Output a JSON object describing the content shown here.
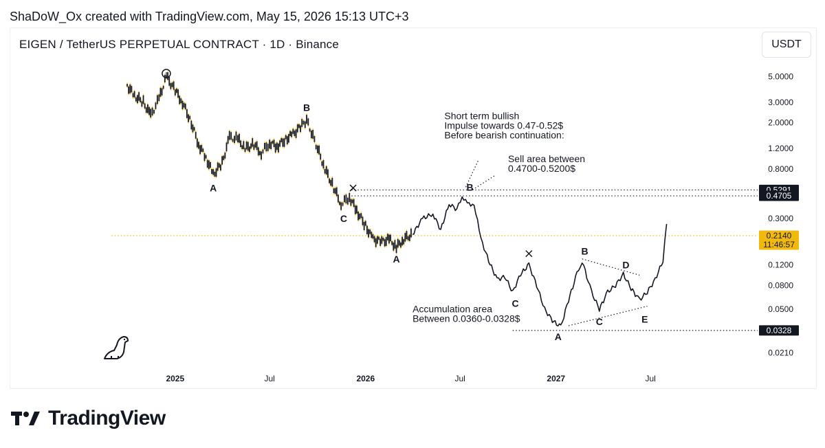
{
  "header": {
    "attribution": "ShaDoW_Ox created with TradingView.com, May 15, 2026 15:13 UTC+3",
    "symbol": "EIGEN / TetherUS PERPETUAL CONTRACT · 1D · Binance",
    "currency_button": "USDT"
  },
  "brand": {
    "name": "TradingView",
    "accent": "#131722"
  },
  "chart_data": {
    "type": "line",
    "scale": "log",
    "ylim": [
      0.018,
      6.5
    ],
    "xlim": [
      "2024-10-01",
      "2027-09-10"
    ],
    "y_ticks": [
      "5.0000",
      "3.0000",
      "2.0000",
      "1.2000",
      "0.8000",
      "0.3000",
      "0.1200",
      "0.0800",
      "0.0500",
      "0.0210"
    ],
    "y_tick_values": [
      5.0,
      3.0,
      2.0,
      1.2,
      0.8,
      0.3,
      0.12,
      0.08,
      0.05,
      0.021
    ],
    "x_ticks": [
      "2025",
      "Jul",
      "2026",
      "Jul",
      "2027",
      "Jul"
    ],
    "x_tick_dates": [
      "2025-01-01",
      "2025-07-01",
      "2026-01-01",
      "2026-07-01",
      "2027-01-01",
      "2027-07-01"
    ],
    "x_tick_bold": [
      true,
      false,
      true,
      false,
      true,
      false
    ],
    "series": [
      {
        "style": "candles",
        "color": "#131722",
        "wick_color": "#f0b90b",
        "points": [
          [
            "2024-10-01",
            4.2
          ],
          [
            "2024-10-15",
            3.4
          ],
          [
            "2024-11-01",
            3.0
          ],
          [
            "2024-11-15",
            2.3
          ],
          [
            "2024-12-01",
            3.2
          ],
          [
            "2024-12-15",
            5.0
          ],
          [
            "2025-01-01",
            3.8
          ],
          [
            "2025-01-15",
            3.0
          ],
          [
            "2025-02-01",
            2.0
          ],
          [
            "2025-02-15",
            1.3
          ],
          [
            "2025-03-01",
            1.0
          ],
          [
            "2025-03-15",
            0.72
          ],
          [
            "2025-04-01",
            0.9
          ],
          [
            "2025-04-15",
            1.5
          ],
          [
            "2025-05-01",
            1.45
          ],
          [
            "2025-05-15",
            1.2
          ],
          [
            "2025-06-01",
            1.3
          ],
          [
            "2025-06-15",
            1.1
          ],
          [
            "2025-07-01",
            1.35
          ],
          [
            "2025-07-15",
            1.25
          ],
          [
            "2025-08-01",
            1.45
          ],
          [
            "2025-08-15",
            1.6
          ],
          [
            "2025-09-01",
            1.9
          ],
          [
            "2025-09-10",
            2.1
          ],
          [
            "2025-10-01",
            1.2
          ],
          [
            "2025-10-15",
            0.8
          ],
          [
            "2025-11-01",
            0.55
          ],
          [
            "2025-11-15",
            0.4
          ],
          [
            "2025-12-01",
            0.46
          ],
          [
            "2025-12-15",
            0.35
          ],
          [
            "2026-01-01",
            0.26
          ],
          [
            "2026-01-15",
            0.2
          ],
          [
            "2026-02-01",
            0.19
          ],
          [
            "2026-02-15",
            0.2
          ],
          [
            "2026-03-01",
            0.17
          ],
          [
            "2026-03-15",
            0.2
          ],
          [
            "2026-04-01",
            0.22
          ]
        ]
      },
      {
        "style": "line",
        "color": "#131722",
        "points": [
          [
            "2026-04-01",
            0.22
          ],
          [
            "2026-04-20",
            0.3
          ],
          [
            "2026-05-10",
            0.33
          ],
          [
            "2026-05-25",
            0.24
          ],
          [
            "2026-06-10",
            0.4
          ],
          [
            "2026-06-25",
            0.36
          ],
          [
            "2026-07-05",
            0.47
          ],
          [
            "2026-07-15",
            0.4
          ],
          [
            "2026-07-28",
            0.4
          ],
          [
            "2026-08-10",
            0.2
          ],
          [
            "2026-08-25",
            0.13
          ],
          [
            "2026-09-10",
            0.09
          ],
          [
            "2026-09-25",
            0.095
          ],
          [
            "2026-10-10",
            0.07
          ],
          [
            "2026-10-25",
            0.1
          ],
          [
            "2026-11-10",
            0.12
          ],
          [
            "2026-11-25",
            0.08
          ],
          [
            "2026-12-10",
            0.05
          ],
          [
            "2026-12-25",
            0.04
          ],
          [
            "2027-01-10",
            0.035
          ],
          [
            "2027-01-25",
            0.06
          ],
          [
            "2027-02-10",
            0.1
          ],
          [
            "2027-02-20",
            0.13
          ],
          [
            "2027-03-10",
            0.07
          ],
          [
            "2027-03-25",
            0.05
          ],
          [
            "2027-04-10",
            0.07
          ],
          [
            "2027-04-25",
            0.08
          ],
          [
            "2027-05-10",
            0.1
          ],
          [
            "2027-05-25",
            0.075
          ],
          [
            "2027-06-10",
            0.06
          ],
          [
            "2027-06-25",
            0.07
          ],
          [
            "2027-07-10",
            0.09
          ],
          [
            "2027-07-25",
            0.13
          ],
          [
            "2027-08-01",
            0.27
          ]
        ]
      }
    ],
    "horizontal_lines": [
      {
        "value": 0.5291,
        "label": "0.5291",
        "style": "dotted",
        "color": "#131722",
        "x_start": "2025-12-05"
      },
      {
        "value": 0.4705,
        "label": "0.4705",
        "style": "dotted",
        "color": "#131722",
        "x_start": "2025-12-05"
      },
      {
        "value": 0.0328,
        "label": "0.0328",
        "style": "dotted",
        "color": "#131722",
        "x_start": "2026-10-10"
      },
      {
        "value": 0.214,
        "label": "0.2140",
        "sublabel": "11:46:57",
        "style": "dotted",
        "color": "#f0b90b",
        "x_start": "2024-09-01"
      }
    ],
    "wave_labels": [
      {
        "text": "A",
        "date": "2025-03-15",
        "value": 0.55,
        "bold": true
      },
      {
        "text": "B",
        "date": "2025-09-10",
        "value": 2.7,
        "bold": true
      },
      {
        "text": "C",
        "date": "2025-11-20",
        "value": 0.3,
        "bold": true
      },
      {
        "text": "A",
        "date": "2026-03-01",
        "value": 0.135,
        "bold": true
      },
      {
        "text": "B",
        "date": "2026-07-20",
        "value": 0.56,
        "bold": true
      },
      {
        "text": "C",
        "date": "2026-10-15",
        "value": 0.056,
        "bold": true
      },
      {
        "text": "A",
        "date": "2027-01-05",
        "value": 0.029,
        "bold": true
      },
      {
        "text": "B",
        "date": "2027-02-25",
        "value": 0.158,
        "bold": true
      },
      {
        "text": "C",
        "date": "2027-03-25",
        "value": 0.039,
        "bold": true
      },
      {
        "text": "D",
        "date": "2027-05-15",
        "value": 0.12,
        "bold": true
      },
      {
        "text": "E",
        "date": "2027-06-20",
        "value": 0.041,
        "bold": true
      }
    ],
    "markers": [
      {
        "symbol": "circle",
        "date": "2024-12-15",
        "value": 5.3
      },
      {
        "symbol": "x",
        "date": "2025-12-08",
        "value": 0.55
      },
      {
        "symbol": "x",
        "date": "2026-11-10",
        "value": 0.15
      }
    ],
    "annotations": [
      {
        "lines": [
          "Short term bullish",
          "Impulse towards 0.47-0.52$",
          "Before bearish continuation:"
        ],
        "date": "2026-06-01",
        "value": 2.15
      },
      {
        "lines": [
          "Sell area between",
          "0.4700-0.5200$"
        ],
        "date": "2026-10-01",
        "value": 0.92
      },
      {
        "lines": [
          "Accumulation area",
          "Between 0.0360-0.0328$"
        ],
        "date": "2026-04-01",
        "value": 0.047
      }
    ],
    "dotted_segments": [
      {
        "from": [
          "2026-07-12",
          0.56
        ],
        "to": [
          "2026-08-05",
          0.95
        ]
      },
      {
        "from": [
          "2026-07-25",
          0.53
        ],
        "to": [
          "2026-09-05",
          0.7
        ]
      },
      {
        "from": [
          "2027-02-20",
          0.135
        ],
        "to": [
          "2027-06-10",
          0.098
        ]
      },
      {
        "from": [
          "2027-01-25",
          0.036
        ],
        "to": [
          "2027-06-25",
          0.053
        ]
      }
    ],
    "grid": false,
    "legend": "none"
  }
}
